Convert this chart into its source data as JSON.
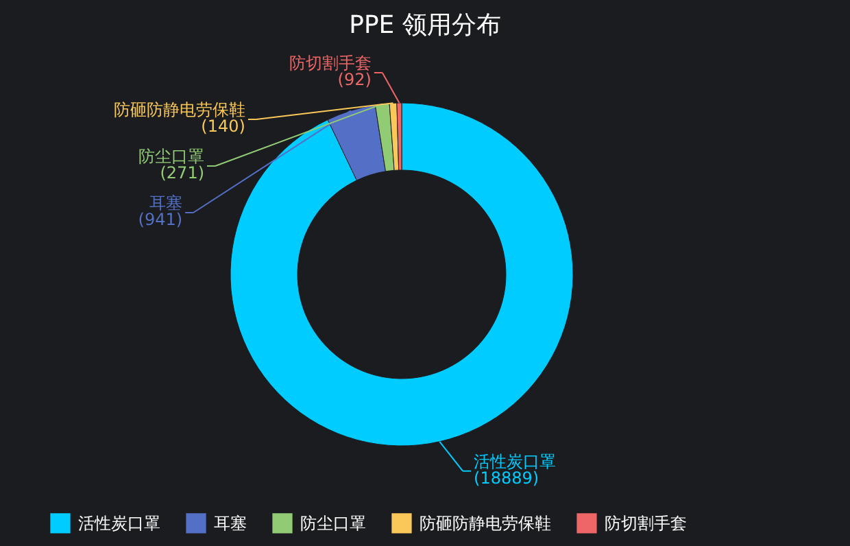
{
  "chart_data": {
    "type": "donut",
    "title": "PPE 领用分布",
    "categories": [
      "活性炭口罩",
      "耳塞",
      "防尘口罩",
      "防砸防静电劳保鞋",
      "防切割手套"
    ],
    "values": [
      18889,
      941,
      271,
      140,
      92
    ],
    "value_labels": [
      "(18889)",
      "(941)",
      "(271)",
      "(140)",
      "(92)"
    ],
    "colors": [
      "#00ccff",
      "#5470c6",
      "#91cc75",
      "#fac858",
      "#ee6666"
    ],
    "legend": "bottom"
  }
}
